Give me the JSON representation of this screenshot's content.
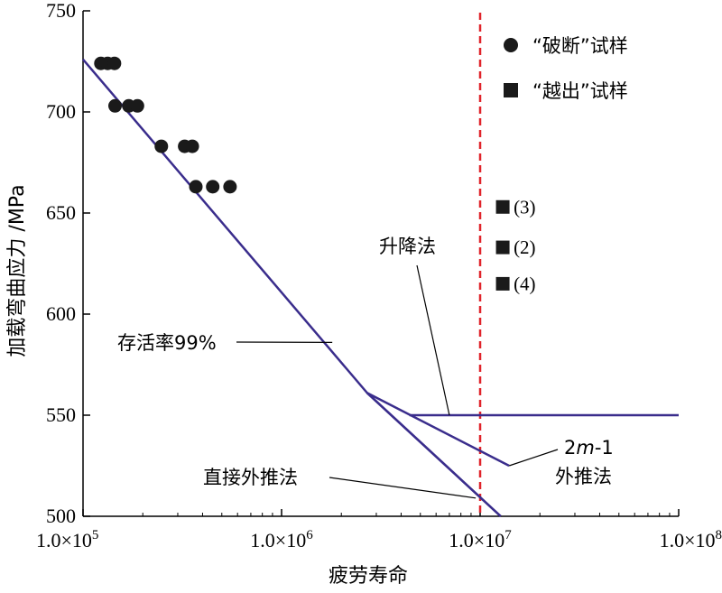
{
  "chart_data": {
    "type": "scatter",
    "xlabel": "疲劳寿命",
    "ylabel": "加载弯曲应力 /MPa",
    "xscale": "log",
    "xlim": [
      100000,
      100000000
    ],
    "ylim": [
      500,
      750
    ],
    "x_ticks": [
      {
        "value": 100000,
        "label": "1.0×10",
        "exp": "5"
      },
      {
        "value": 1000000,
        "label": "1.0×10",
        "exp": "6"
      },
      {
        "value": 10000000,
        "label": "1.0×10",
        "exp": "7"
      },
      {
        "value": 100000000,
        "label": "1.0×10",
        "exp": "8"
      }
    ],
    "y_ticks": [
      500,
      550,
      600,
      650,
      700,
      750
    ],
    "grid": false,
    "legend": {
      "position": "top-right",
      "items": [
        {
          "label": "“破断”试样",
          "marker": "circle"
        },
        {
          "label": "“越出”试样",
          "marker": "square"
        }
      ]
    },
    "series": [
      {
        "name": "“破断”试样",
        "marker": "circle",
        "color": "#1a1a1a",
        "points": [
          [
            123000,
            724
          ],
          [
            133000,
            724
          ],
          [
            144000,
            724
          ],
          [
            145000,
            703
          ],
          [
            170000,
            703
          ],
          [
            188000,
            703
          ],
          [
            248000,
            683
          ],
          [
            325000,
            683
          ],
          [
            355000,
            683
          ],
          [
            370000,
            663
          ],
          [
            450000,
            663
          ],
          [
            550000,
            663
          ]
        ]
      },
      {
        "name": "“越出”试样",
        "marker": "square",
        "color": "#1a1a1a",
        "points": [
          {
            "x": 13000000,
            "y": 653,
            "label": "(3)"
          },
          {
            "x": 13000000,
            "y": 633,
            "label": "(2)"
          },
          {
            "x": 13000000,
            "y": 615,
            "label": "(4)"
          }
        ]
      }
    ],
    "lines": [
      {
        "label": "存活率99%",
        "color": "#3a2d8c",
        "points": [
          [
            100000,
            726
          ],
          [
            2700000,
            561
          ],
          [
            12700000,
            500
          ]
        ]
      },
      {
        "label": "升降法",
        "color": "#3a2d8c",
        "points": [
          [
            4400000,
            550
          ],
          [
            100000000,
            550
          ]
        ]
      },
      {
        "label": "2m-1 外推法",
        "color": "#3a2d8c",
        "points": [
          [
            2700000,
            561
          ],
          [
            14000000,
            525
          ]
        ]
      },
      {
        "label": "直接外推法",
        "color": "#3a2d8c",
        "points": [
          [
            2700000,
            561
          ],
          [
            12700000,
            500
          ]
        ]
      }
    ],
    "reference_line": {
      "x": 10000000,
      "color": "#e0232a",
      "style": "dashed"
    },
    "annotations": [
      {
        "text": "升降法",
        "target": [
          7000000,
          550
        ]
      },
      {
        "text": "存活率99%",
        "target": [
          1800000,
          586
        ]
      },
      {
        "text": "直接外推法",
        "target": [
          9500000,
          509
        ]
      },
      {
        "text": "2m-1",
        "sub": "外推法",
        "target": [
          14000000,
          525
        ]
      }
    ]
  }
}
